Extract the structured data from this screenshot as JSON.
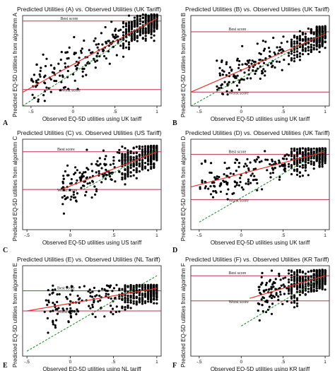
{
  "chart_data": [
    {
      "type": "scatter",
      "panel_label": "A",
      "title": "Predicted Utilities (A) vs. Observed Utilities (UK Tariff)",
      "xlabel": "Observed EQ-5D utilities using UK tariff",
      "ylabel": "Predicted EQ-5D utilities from algorithm A",
      "xticks": [
        "-.5",
        "0",
        ".5",
        "1"
      ],
      "xlim": [
        -0.6,
        1.05
      ],
      "ylim": [
        -0.6,
        1.05
      ],
      "reference_lines": [
        {
          "label": "Best score",
          "y": 0.95
        },
        {
          "label": "Worst score",
          "y": -0.3
        }
      ],
      "fit_line": [
        [
          -0.6,
          -0.35
        ],
        [
          1.0,
          1.0
        ]
      ],
      "identity_line": [
        [
          -0.6,
          -0.6
        ],
        [
          1.0,
          1.0
        ]
      ],
      "density_min_x": -0.5
    },
    {
      "type": "scatter",
      "panel_label": "B",
      "title": "Predicted Utilities (B) vs. Observed Utilities (UK Tariff)",
      "xlabel": "Observed EQ-5D utilities using UK tariff",
      "ylabel": "Predicted EQ-5D utilities from algorithm B",
      "xticks": [
        "-.5",
        "0",
        ".5",
        "1"
      ],
      "xlim": [
        -0.6,
        1.05
      ],
      "ylim": [
        -0.6,
        1.35
      ],
      "reference_lines": [
        {
          "label": "Best score",
          "y": 1.0
        },
        {
          "label": "Worst score",
          "y": -0.3
        }
      ],
      "fit_line": [
        [
          -0.6,
          -0.3
        ],
        [
          1.0,
          0.95
        ]
      ],
      "identity_line": [
        [
          -0.6,
          -0.6
        ],
        [
          1.0,
          1.0
        ]
      ],
      "density_min_x": -0.3
    },
    {
      "type": "scatter",
      "panel_label": "C",
      "title": "Predicted Utilities (C) vs. Observed Utilities (US Tariff)",
      "xlabel": "Observed EQ-5D utilities using US tariff",
      "ylabel": "Predicted EQ-5D utilities from algorithm C",
      "xticks": [
        "-.5",
        "0",
        ".5",
        "1"
      ],
      "xlim": [
        -0.55,
        1.05
      ],
      "ylim": [
        -0.6,
        1.2
      ],
      "reference_lines": [
        {
          "label": "Best score",
          "y": 0.95
        },
        {
          "label": "Worst score",
          "y": 0.2
        }
      ],
      "fit_line": [
        [
          -0.1,
          0.2
        ],
        [
          1.0,
          0.95
        ]
      ],
      "identity_line": [
        [
          0.15,
          0.2
        ],
        [
          1.0,
          1.0
        ]
      ],
      "density_min_x": -0.1
    },
    {
      "type": "scatter",
      "panel_label": "D",
      "title": "Predicted Utilities (D) vs. Observed Utilities (UK Tariff)",
      "xlabel": "Observed EQ-5D utilities using UK tariff",
      "ylabel": "Predicted EQ-5D utilities from algorithm D",
      "xticks": [
        "-.5",
        "0",
        ".5",
        "1"
      ],
      "xlim": [
        -0.6,
        1.05
      ],
      "ylim": [
        -0.6,
        1.2
      ],
      "reference_lines": [
        {
          "label": "Best score",
          "y": 0.9
        },
        {
          "label": "Worst score",
          "y": 0.0
        }
      ],
      "fit_line": [
        [
          -0.6,
          0.25
        ],
        [
          1.0,
          0.95
        ]
      ],
      "identity_line": [
        [
          -0.5,
          -0.45
        ],
        [
          1.0,
          1.0
        ]
      ],
      "density_min_x": -0.5
    },
    {
      "type": "scatter",
      "panel_label": "E",
      "title": "Predicted Utilities (E) vs. Observed Utilities (NL Tariff)",
      "xlabel": "Observed EQ-5D utilities using NL tariff",
      "ylabel": "Predicted EQ-5D utilities from algorithm E",
      "xticks": [
        "-.5",
        "0",
        ".5",
        "1"
      ],
      "xlim": [
        -0.55,
        1.05
      ],
      "ylim": [
        -0.6,
        1.2
      ],
      "reference_lines": [
        {
          "label": "Best score",
          "y": 0.7
        },
        {
          "label": "Worst score",
          "y": 0.3
        }
      ],
      "fit_line": [
        [
          -0.5,
          0.3
        ],
        [
          1.0,
          0.75
        ]
      ],
      "identity_line": [
        [
          -0.5,
          -0.5
        ],
        [
          1.0,
          1.0
        ]
      ],
      "density_min_x": -0.3
    },
    {
      "type": "scatter",
      "panel_label": "F",
      "title": "Predicted Utilities (F) vs. Observed Utilities (KR Tariff)",
      "xlabel": "Observed EQ-5D utilities using KR tariff",
      "ylabel": "Predicted EQ-5D utilities from algorithm F",
      "xticks": [
        "-.5",
        "0",
        ".5",
        "1"
      ],
      "xlim": [
        -0.6,
        1.05
      ],
      "ylim": [
        -0.6,
        1.2
      ],
      "reference_lines": [
        {
          "label": "Best score",
          "y": 1.0
        },
        {
          "label": "Worst score",
          "y": 0.5
        }
      ],
      "fit_line": [
        [
          0.1,
          0.55
        ],
        [
          1.0,
          1.0
        ]
      ],
      "identity_line": [
        [
          0.0,
          0.0
        ],
        [
          1.0,
          1.0
        ]
      ],
      "density_min_x": 0.2
    }
  ],
  "colors": {
    "points": "#000000",
    "reference_line": "#c0304a",
    "fit_line": "#e8322e",
    "identity_line": "#2e8b3a",
    "axis": "#111111",
    "background": "#ffffff"
  }
}
